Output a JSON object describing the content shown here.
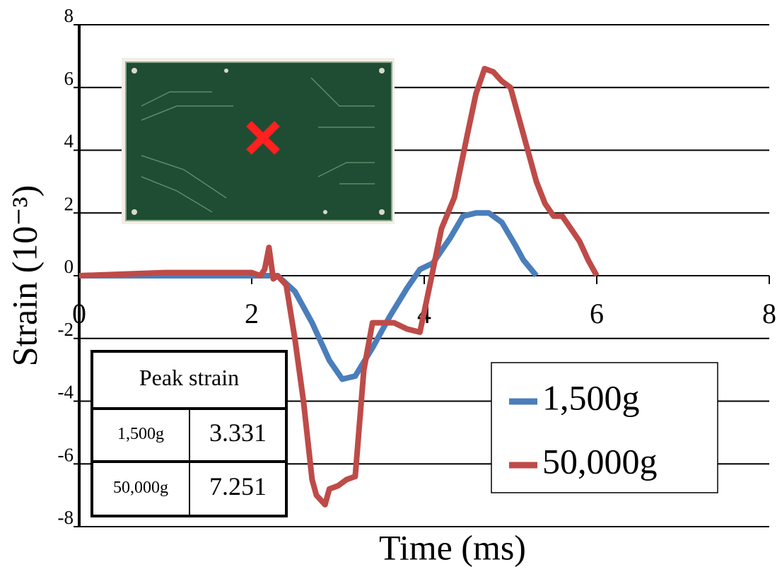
{
  "chart_data": {
    "type": "line",
    "xlabel": "Time (ms)",
    "ylabel": "Strain (10⁻³)",
    "xlim": [
      0,
      8
    ],
    "xticks": [
      0,
      2,
      4,
      6,
      8
    ],
    "ylim": [
      -8,
      8
    ],
    "yticks": [
      -8,
      -6,
      -4,
      -2,
      0,
      2,
      4,
      6,
      8
    ],
    "grid": true,
    "legend": "lower right",
    "series": [
      {
        "name": "1,500g",
        "color": "#4a7ebb",
        "x": [
          0,
          1,
          2,
          2.3,
          2.5,
          2.7,
          2.9,
          3.05,
          3.2,
          3.4,
          3.6,
          3.8,
          3.95,
          4.1,
          4.3,
          4.45,
          4.6,
          4.75,
          4.9,
          5.05,
          5.15,
          5.3
        ],
        "values": [
          0,
          0,
          0,
          0,
          -0.5,
          -1.5,
          -2.7,
          -3.3,
          -3.2,
          -2.3,
          -1.3,
          -0.4,
          0.2,
          0.4,
          1.2,
          1.9,
          2.0,
          2.0,
          1.7,
          1.0,
          0.5,
          0
        ]
      },
      {
        "name": "50,000g",
        "color": "#be4b48",
        "x": [
          0,
          1,
          2.0,
          2.1,
          2.15,
          2.2,
          2.25,
          2.3,
          2.4,
          2.5,
          2.6,
          2.7,
          2.75,
          2.85,
          2.9,
          3.0,
          3.1,
          3.2,
          3.3,
          3.4,
          3.55,
          3.65,
          3.8,
          3.95,
          4.05,
          4.2,
          4.35,
          4.5,
          4.6,
          4.7,
          4.8,
          4.9,
          5.0,
          5.1,
          5.2,
          5.3,
          5.4,
          5.5,
          5.6,
          5.7,
          5.8,
          5.9,
          6.0
        ],
        "values": [
          0,
          0.1,
          0.1,
          0,
          0.2,
          0.9,
          -0.1,
          0,
          -0.3,
          -2,
          -4,
          -6.5,
          -7,
          -7.3,
          -6.8,
          -6.7,
          -6.5,
          -6.4,
          -3,
          -1.5,
          -1.5,
          -1.5,
          -1.7,
          -1.8,
          -0.5,
          1.5,
          2.5,
          4.5,
          5.8,
          6.6,
          6.5,
          6.2,
          6.0,
          5.0,
          4.0,
          3.0,
          2.3,
          1.9,
          1.9,
          1.5,
          1.1,
          0.5,
          0
        ]
      }
    ]
  },
  "table": {
    "header": "Peak strain",
    "rows": [
      [
        "1,500g",
        "3.331"
      ],
      [
        "50,000g",
        "7.251"
      ]
    ]
  }
}
